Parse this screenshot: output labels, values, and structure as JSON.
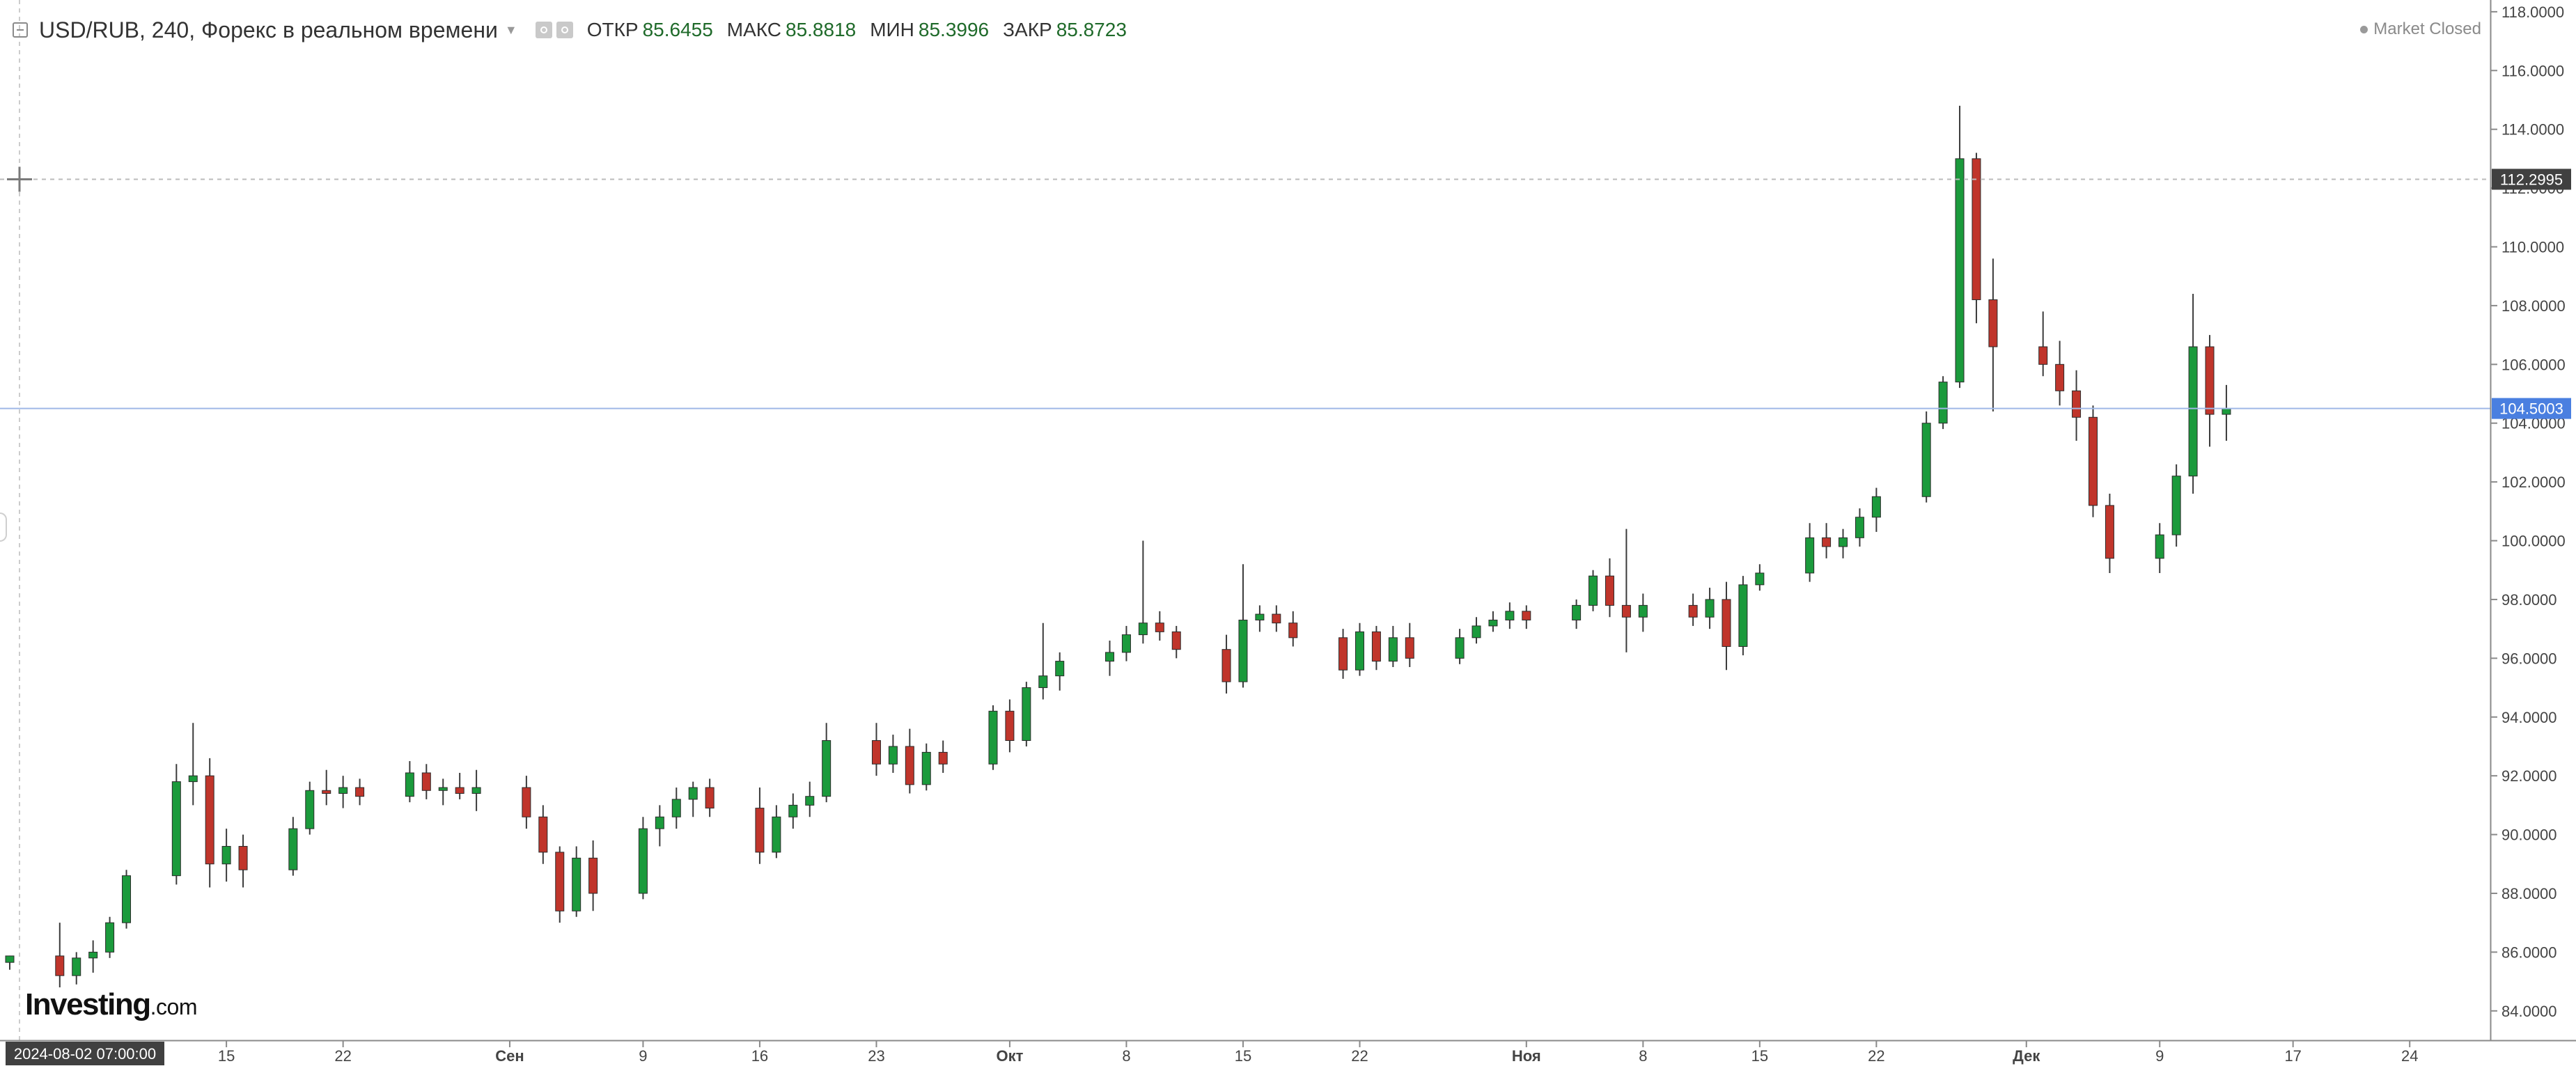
{
  "legend": {
    "title": "USD/RUB, 240, Форекс в реальном времени",
    "open_label": "ОТКР",
    "open_value": "85.6455",
    "high_label": "МАКС",
    "high_value": "85.8818",
    "low_label": "МИН",
    "low_value": "85.3996",
    "close_label": "ЗАКР",
    "close_value": "85.8723"
  },
  "status": {
    "text": "Market Closed"
  },
  "logo": {
    "main": "Investing",
    "suffix": ".com"
  },
  "crosshair": {
    "price_label": "112.2995",
    "price": 112.2995,
    "time_label": "2024-08-02 07:00:00"
  },
  "last_price": {
    "label": "104.5003",
    "value": 104.5003
  },
  "colors": {
    "up": "#1b9a3c",
    "down": "#c0352b",
    "wick": "#3b3b3b",
    "last_price": "#4a7fe0",
    "crosshair_badge": "#404040"
  },
  "chart_data": {
    "type": "candlestick",
    "title": "USD/RUB, 240, Форекс в реальном времени",
    "xlabel": "",
    "ylabel": "",
    "ylim": [
      83,
      118.4
    ],
    "xlim": [
      "2024-08-02",
      "2024-12-27"
    ],
    "y_ticks": [
      "84.0000",
      "86.0000",
      "88.0000",
      "90.0000",
      "92.0000",
      "94.0000",
      "96.0000",
      "98.0000",
      "100.0000",
      "102.0000",
      "104.0000",
      "106.0000",
      "108.0000",
      "110.0000",
      "112.0000",
      "114.0000",
      "116.0000",
      "118.0000"
    ],
    "x_ticks": [
      {
        "date": "2024-08-15",
        "label": "15"
      },
      {
        "date": "2024-08-22",
        "label": "22"
      },
      {
        "date": "2024-09-01",
        "label": "Сен"
      },
      {
        "date": "2024-09-09",
        "label": "9"
      },
      {
        "date": "2024-09-16",
        "label": "16"
      },
      {
        "date": "2024-09-23",
        "label": "23"
      },
      {
        "date": "2024-10-01",
        "label": "Окт"
      },
      {
        "date": "2024-10-08",
        "label": "8"
      },
      {
        "date": "2024-10-15",
        "label": "15"
      },
      {
        "date": "2024-10-22",
        "label": "22"
      },
      {
        "date": "2024-11-01",
        "label": "Ноя"
      },
      {
        "date": "2024-11-08",
        "label": "8"
      },
      {
        "date": "2024-11-15",
        "label": "15"
      },
      {
        "date": "2024-11-22",
        "label": "22"
      },
      {
        "date": "2024-12-01",
        "label": "Дек"
      },
      {
        "date": "2024-12-09",
        "label": "9"
      },
      {
        "date": "2024-12-17",
        "label": "17"
      },
      {
        "date": "2024-12-24",
        "label": "24"
      }
    ],
    "grid": false,
    "series": [
      {
        "values": [
          {
            "date": "2024-08-02",
            "o": 85.65,
            "h": 85.88,
            "l": 85.4,
            "c": 85.87
          },
          {
            "date": "2024-08-05",
            "o": 85.87,
            "h": 87.0,
            "l": 84.8,
            "c": 85.2
          },
          {
            "date": "2024-08-06",
            "o": 85.2,
            "h": 86.0,
            "l": 84.9,
            "c": 85.8
          },
          {
            "date": "2024-08-07",
            "o": 85.8,
            "h": 86.4,
            "l": 85.3,
            "c": 86.0
          },
          {
            "date": "2024-08-08",
            "o": 86.0,
            "h": 87.2,
            "l": 85.8,
            "c": 87.0
          },
          {
            "date": "2024-08-09",
            "o": 87.0,
            "h": 88.8,
            "l": 86.8,
            "c": 88.6
          },
          {
            "date": "2024-08-12",
            "o": 88.6,
            "h": 92.4,
            "l": 88.3,
            "c": 91.8
          },
          {
            "date": "2024-08-13",
            "o": 91.8,
            "h": 93.8,
            "l": 91.0,
            "c": 92.0
          },
          {
            "date": "2024-08-14",
            "o": 92.0,
            "h": 92.6,
            "l": 88.2,
            "c": 89.0
          },
          {
            "date": "2024-08-15",
            "o": 89.0,
            "h": 90.2,
            "l": 88.4,
            "c": 89.6
          },
          {
            "date": "2024-08-16",
            "o": 89.6,
            "h": 90.0,
            "l": 88.2,
            "c": 88.8
          },
          {
            "date": "2024-08-19",
            "o": 88.8,
            "h": 90.6,
            "l": 88.6,
            "c": 90.2
          },
          {
            "date": "2024-08-20",
            "o": 90.2,
            "h": 91.8,
            "l": 90.0,
            "c": 91.5
          },
          {
            "date": "2024-08-21",
            "o": 91.5,
            "h": 92.2,
            "l": 91.0,
            "c": 91.4
          },
          {
            "date": "2024-08-22",
            "o": 91.4,
            "h": 92.0,
            "l": 90.9,
            "c": 91.6
          },
          {
            "date": "2024-08-23",
            "o": 91.6,
            "h": 91.9,
            "l": 91.0,
            "c": 91.3
          },
          {
            "date": "2024-08-26",
            "o": 91.3,
            "h": 92.5,
            "l": 91.1,
            "c": 92.1
          },
          {
            "date": "2024-08-27",
            "o": 92.1,
            "h": 92.4,
            "l": 91.2,
            "c": 91.5
          },
          {
            "date": "2024-08-28",
            "o": 91.5,
            "h": 91.9,
            "l": 91.0,
            "c": 91.6
          },
          {
            "date": "2024-08-29",
            "o": 91.6,
            "h": 92.1,
            "l": 91.2,
            "c": 91.4
          },
          {
            "date": "2024-08-30",
            "o": 91.4,
            "h": 92.2,
            "l": 90.8,
            "c": 91.6
          },
          {
            "date": "2024-09-02",
            "o": 91.6,
            "h": 92.0,
            "l": 90.2,
            "c": 90.6
          },
          {
            "date": "2024-09-03",
            "o": 90.6,
            "h": 91.0,
            "l": 89.0,
            "c": 89.4
          },
          {
            "date": "2024-09-04",
            "o": 89.4,
            "h": 89.6,
            "l": 87.0,
            "c": 87.4
          },
          {
            "date": "2024-09-05",
            "o": 87.4,
            "h": 89.6,
            "l": 87.2,
            "c": 89.2
          },
          {
            "date": "2024-09-06",
            "o": 89.2,
            "h": 89.8,
            "l": 87.4,
            "c": 88.0
          },
          {
            "date": "2024-09-09",
            "o": 88.0,
            "h": 90.6,
            "l": 87.8,
            "c": 90.2
          },
          {
            "date": "2024-09-10",
            "o": 90.2,
            "h": 91.0,
            "l": 89.6,
            "c": 90.6
          },
          {
            "date": "2024-09-11",
            "o": 90.6,
            "h": 91.6,
            "l": 90.2,
            "c": 91.2
          },
          {
            "date": "2024-09-12",
            "o": 91.2,
            "h": 91.8,
            "l": 90.6,
            "c": 91.6
          },
          {
            "date": "2024-09-13",
            "o": 91.6,
            "h": 91.9,
            "l": 90.6,
            "c": 90.9
          },
          {
            "date": "2024-09-16",
            "o": 90.9,
            "h": 91.6,
            "l": 89.0,
            "c": 89.4
          },
          {
            "date": "2024-09-17",
            "o": 89.4,
            "h": 91.0,
            "l": 89.2,
            "c": 90.6
          },
          {
            "date": "2024-09-18",
            "o": 90.6,
            "h": 91.4,
            "l": 90.2,
            "c": 91.0
          },
          {
            "date": "2024-09-19",
            "o": 91.0,
            "h": 91.8,
            "l": 90.6,
            "c": 91.3
          },
          {
            "date": "2024-09-20",
            "o": 91.3,
            "h": 93.8,
            "l": 91.1,
            "c": 93.2
          },
          {
            "date": "2024-09-23",
            "o": 93.2,
            "h": 93.8,
            "l": 92.0,
            "c": 92.4
          },
          {
            "date": "2024-09-24",
            "o": 92.4,
            "h": 93.4,
            "l": 92.1,
            "c": 93.0
          },
          {
            "date": "2024-09-25",
            "o": 93.0,
            "h": 93.6,
            "l": 91.4,
            "c": 91.7
          },
          {
            "date": "2024-09-26",
            "o": 91.7,
            "h": 93.1,
            "l": 91.5,
            "c": 92.8
          },
          {
            "date": "2024-09-27",
            "o": 92.8,
            "h": 93.2,
            "l": 92.1,
            "c": 92.4
          },
          {
            "date": "2024-09-30",
            "o": 92.4,
            "h": 94.4,
            "l": 92.2,
            "c": 94.2
          },
          {
            "date": "2024-10-01",
            "o": 94.2,
            "h": 94.6,
            "l": 92.8,
            "c": 93.2
          },
          {
            "date": "2024-10-02",
            "o": 93.2,
            "h": 95.2,
            "l": 93.0,
            "c": 95.0
          },
          {
            "date": "2024-10-03",
            "o": 95.0,
            "h": 97.2,
            "l": 94.6,
            "c": 95.4
          },
          {
            "date": "2024-10-04",
            "o": 95.4,
            "h": 96.2,
            "l": 94.9,
            "c": 95.9
          },
          {
            "date": "2024-10-07",
            "o": 95.9,
            "h": 96.6,
            "l": 95.4,
            "c": 96.2
          },
          {
            "date": "2024-10-08",
            "o": 96.2,
            "h": 97.1,
            "l": 95.9,
            "c": 96.8
          },
          {
            "date": "2024-10-09",
            "o": 96.8,
            "h": 100.0,
            "l": 96.5,
            "c": 97.2
          },
          {
            "date": "2024-10-10",
            "o": 97.2,
            "h": 97.6,
            "l": 96.6,
            "c": 96.9
          },
          {
            "date": "2024-10-11",
            "o": 96.9,
            "h": 97.1,
            "l": 96.0,
            "c": 96.3
          },
          {
            "date": "2024-10-14",
            "o": 96.3,
            "h": 96.8,
            "l": 94.8,
            "c": 95.2
          },
          {
            "date": "2024-10-15",
            "o": 95.2,
            "h": 99.2,
            "l": 95.0,
            "c": 97.3
          },
          {
            "date": "2024-10-16",
            "o": 97.3,
            "h": 97.8,
            "l": 96.9,
            "c": 97.5
          },
          {
            "date": "2024-10-17",
            "o": 97.5,
            "h": 97.8,
            "l": 96.9,
            "c": 97.2
          },
          {
            "date": "2024-10-18",
            "o": 97.2,
            "h": 97.6,
            "l": 96.4,
            "c": 96.7
          },
          {
            "date": "2024-10-21",
            "o": 96.7,
            "h": 97.0,
            "l": 95.3,
            "c": 95.6
          },
          {
            "date": "2024-10-22",
            "o": 95.6,
            "h": 97.2,
            "l": 95.4,
            "c": 96.9
          },
          {
            "date": "2024-10-23",
            "o": 96.9,
            "h": 97.1,
            "l": 95.6,
            "c": 95.9
          },
          {
            "date": "2024-10-24",
            "o": 95.9,
            "h": 97.1,
            "l": 95.7,
            "c": 96.7
          },
          {
            "date": "2024-10-25",
            "o": 96.7,
            "h": 97.2,
            "l": 95.7,
            "c": 96.0
          },
          {
            "date": "2024-10-28",
            "o": 96.0,
            "h": 97.0,
            "l": 95.8,
            "c": 96.7
          },
          {
            "date": "2024-10-29",
            "o": 96.7,
            "h": 97.4,
            "l": 96.5,
            "c": 97.1
          },
          {
            "date": "2024-10-30",
            "o": 97.1,
            "h": 97.6,
            "l": 96.9,
            "c": 97.3
          },
          {
            "date": "2024-10-31",
            "o": 97.3,
            "h": 97.9,
            "l": 97.0,
            "c": 97.6
          },
          {
            "date": "2024-11-01",
            "o": 97.6,
            "h": 97.8,
            "l": 97.0,
            "c": 97.3
          },
          {
            "date": "2024-11-04",
            "o": 97.3,
            "h": 98.0,
            "l": 97.0,
            "c": 97.8
          },
          {
            "date": "2024-11-05",
            "o": 97.8,
            "h": 99.0,
            "l": 97.6,
            "c": 98.8
          },
          {
            "date": "2024-11-06",
            "o": 98.8,
            "h": 99.4,
            "l": 97.4,
            "c": 97.8
          },
          {
            "date": "2024-11-07",
            "o": 97.8,
            "h": 100.4,
            "l": 96.2,
            "c": 97.4
          },
          {
            "date": "2024-11-08",
            "o": 97.4,
            "h": 98.2,
            "l": 96.9,
            "c": 97.8
          },
          {
            "date": "2024-11-11",
            "o": 97.8,
            "h": 98.2,
            "l": 97.1,
            "c": 97.4
          },
          {
            "date": "2024-11-12",
            "o": 97.4,
            "h": 98.4,
            "l": 97.0,
            "c": 98.0
          },
          {
            "date": "2024-11-13",
            "o": 98.0,
            "h": 98.6,
            "l": 95.6,
            "c": 96.4
          },
          {
            "date": "2024-11-14",
            "o": 96.4,
            "h": 98.8,
            "l": 96.1,
            "c": 98.5
          },
          {
            "date": "2024-11-15",
            "o": 98.5,
            "h": 99.2,
            "l": 98.3,
            "c": 98.9
          },
          {
            "date": "2024-11-18",
            "o": 98.9,
            "h": 100.6,
            "l": 98.6,
            "c": 100.1
          },
          {
            "date": "2024-11-19",
            "o": 100.1,
            "h": 100.6,
            "l": 99.4,
            "c": 99.8
          },
          {
            "date": "2024-11-20",
            "o": 99.8,
            "h": 100.4,
            "l": 99.4,
            "c": 100.1
          },
          {
            "date": "2024-11-21",
            "o": 100.1,
            "h": 101.1,
            "l": 99.8,
            "c": 100.8
          },
          {
            "date": "2024-11-22",
            "o": 100.8,
            "h": 101.8,
            "l": 100.3,
            "c": 101.5
          },
          {
            "date": "2024-11-25",
            "o": 101.5,
            "h": 104.4,
            "l": 101.3,
            "c": 104.0
          },
          {
            "date": "2024-11-26",
            "o": 104.0,
            "h": 105.6,
            "l": 103.8,
            "c": 105.4
          },
          {
            "date": "2024-11-27",
            "o": 105.4,
            "h": 114.8,
            "l": 105.2,
            "c": 113.0
          },
          {
            "date": "2024-11-28",
            "o": 113.0,
            "h": 113.2,
            "l": 107.4,
            "c": 108.2
          },
          {
            "date": "2024-11-29",
            "o": 108.2,
            "h": 109.6,
            "l": 104.4,
            "c": 106.6
          },
          {
            "date": "2024-12-02",
            "o": 106.6,
            "h": 107.8,
            "l": 105.6,
            "c": 106.0
          },
          {
            "date": "2024-12-03",
            "o": 106.0,
            "h": 106.8,
            "l": 104.6,
            "c": 105.1
          },
          {
            "date": "2024-12-04",
            "o": 105.1,
            "h": 105.8,
            "l": 103.4,
            "c": 104.2
          },
          {
            "date": "2024-12-05",
            "o": 104.2,
            "h": 104.6,
            "l": 100.8,
            "c": 101.2
          },
          {
            "date": "2024-12-06",
            "o": 101.2,
            "h": 101.6,
            "l": 98.9,
            "c": 99.4
          },
          {
            "date": "2024-12-09",
            "o": 99.4,
            "h": 100.6,
            "l": 98.9,
            "c": 100.2
          },
          {
            "date": "2024-12-10",
            "o": 100.2,
            "h": 102.6,
            "l": 99.8,
            "c": 102.2
          },
          {
            "date": "2024-12-11",
            "o": 102.2,
            "h": 108.4,
            "l": 101.6,
            "c": 106.6
          },
          {
            "date": "2024-12-12",
            "o": 106.6,
            "h": 107.0,
            "l": 103.2,
            "c": 104.3
          },
          {
            "date": "2024-12-13",
            "o": 104.3,
            "h": 105.3,
            "l": 103.4,
            "c": 104.5
          }
        ]
      }
    ]
  }
}
